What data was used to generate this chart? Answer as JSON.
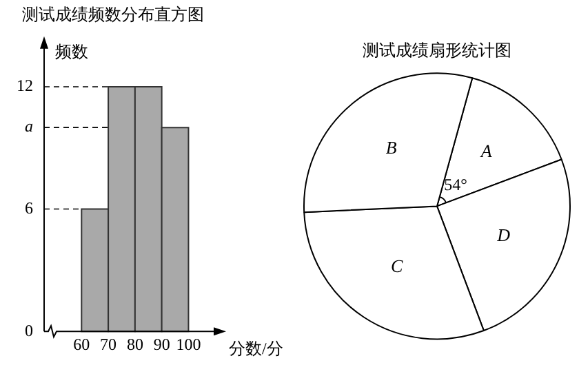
{
  "chart_data": [
    {
      "type": "histogram",
      "title": "测试成绩频数分布直方图",
      "xlabel": "分数/分",
      "ylabel": "频数",
      "bins": [
        60,
        70,
        80,
        90,
        100
      ],
      "values": [
        6,
        12,
        12,
        10
      ],
      "color": "#a9a9a9",
      "xlim": [
        46,
        112
      ],
      "xticks": [
        60,
        70,
        80,
        90,
        100
      ],
      "ylim": [
        0,
        14.2
      ],
      "yticks": [
        0,
        6,
        {
          "value": 10,
          "label": "a"
        },
        12
      ],
      "ref_lines": [
        {
          "axis": "y",
          "value": 12,
          "line_style": "dashed"
        },
        {
          "axis": "y",
          "value": 10,
          "line_style": "dashed"
        },
        {
          "axis": "y",
          "value": 6,
          "line_style": "dashed"
        }
      ],
      "grid": false,
      "legend": false
    },
    {
      "type": "pie",
      "title": "测试成绩扇形统计图",
      "categories": [
        "A",
        "D",
        "C",
        "B"
      ],
      "values": [
        15,
        25,
        30,
        30
      ],
      "colors": [
        "#ffffff",
        "#ffffff",
        "#ffffff",
        "#ffffff"
      ],
      "annotations": [
        "54°"
      ],
      "legend": false
    }
  ]
}
